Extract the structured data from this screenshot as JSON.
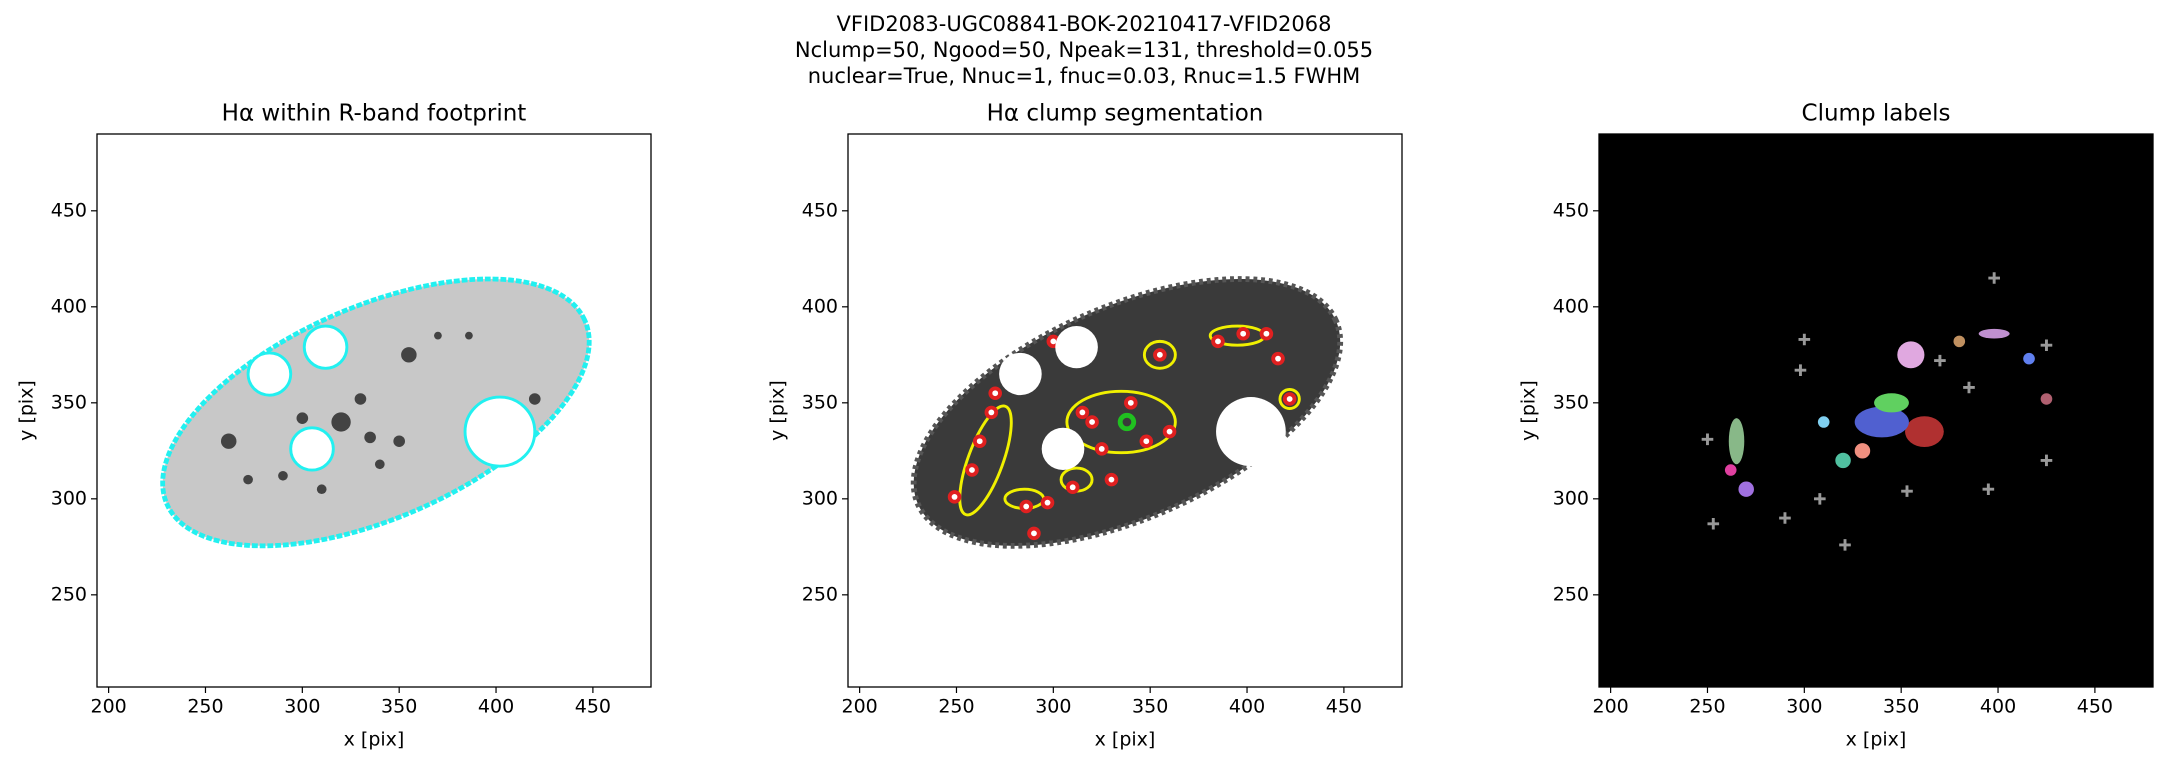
{
  "title": [
    "VFID2083-UGC08841-BOK-20210417-VFID2068",
    "Nclump=50, Ngood=50, Npeak=131, threshold=0.055",
    "nuclear=True, Nnuc=1, fnuc=0.03, Rnuc=1.5 FWHM"
  ],
  "chart_data": [
    {
      "type": "image",
      "title": "Hα within R-band footprint",
      "xlabel": "x [pix]",
      "ylabel": "y [pix]",
      "xlim": [
        194,
        480
      ],
      "ylim": [
        202,
        490
      ],
      "xticks": [
        200,
        250,
        300,
        350,
        400,
        450
      ],
      "yticks": [
        250,
        300,
        350,
        400,
        450
      ]
    },
    {
      "type": "image",
      "title": "Hα clump segmentation",
      "xlabel": "x [pix]",
      "ylabel": "y [pix]",
      "xlim": [
        194,
        480
      ],
      "ylim": [
        202,
        490
      ],
      "xticks": [
        200,
        250,
        300,
        350,
        400,
        450
      ],
      "yticks": [
        250,
        300,
        350,
        400,
        450
      ]
    },
    {
      "type": "image",
      "title": "Clump labels",
      "xlabel": "x [pix]",
      "ylabel": "y [pix]",
      "xlim": [
        194,
        480
      ],
      "ylim": [
        202,
        490
      ],
      "xticks": [
        200,
        250,
        300,
        350,
        400,
        450
      ],
      "yticks": [
        250,
        300,
        350,
        400,
        450
      ]
    }
  ]
}
